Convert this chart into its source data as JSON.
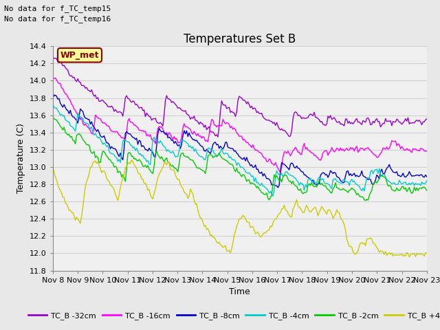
{
  "title": "Temperatures Set B",
  "xlabel": "Time",
  "ylabel": "Temperature (C)",
  "ylim": [
    11.8,
    14.4
  ],
  "xlim": [
    0,
    15
  ],
  "annotation_lines": [
    "No data for f_TC_temp15",
    "No data for f_TC_temp16"
  ],
  "wp_met_label": "WP_met",
  "x_tick_labels": [
    "Nov 8",
    "Nov 9",
    "Nov 10",
    "Nov 11",
    "Nov 12",
    "Nov 13",
    "Nov 14",
    "Nov 15",
    "Nov 16",
    "Nov 17",
    "Nov 18",
    "Nov 19",
    "Nov 20",
    "Nov 21",
    "Nov 22",
    "Nov 23"
  ],
  "y_ticks": [
    11.8,
    12.0,
    12.2,
    12.4,
    12.6,
    12.8,
    13.0,
    13.2,
    13.4,
    13.6,
    13.8,
    14.0,
    14.2,
    14.4
  ],
  "series": {
    "TC_B -32cm": {
      "color": "#9900cc",
      "pattern": [
        14.27,
        14.25,
        14.22,
        14.2,
        14.18,
        14.16,
        14.12,
        14.08,
        14.05,
        14.02,
        14.0,
        13.98,
        13.95,
        13.93,
        13.9,
        13.88,
        13.85,
        13.82,
        13.8,
        13.78,
        13.76,
        13.74,
        13.72,
        13.7,
        13.68,
        13.66,
        13.64,
        13.62,
        13.6,
        13.82,
        13.8,
        13.78,
        13.75,
        13.72,
        13.7,
        13.68,
        13.65,
        13.62,
        13.6,
        13.58,
        13.56,
        13.54,
        13.52,
        13.5,
        13.48,
        13.82,
        13.8,
        13.78,
        13.75,
        13.72,
        13.7,
        13.68,
        13.65,
        13.62,
        13.6,
        13.58,
        13.56,
        13.54,
        13.52,
        13.5,
        13.48,
        13.46,
        13.44,
        13.42,
        13.4,
        13.38,
        13.36,
        13.75,
        13.73,
        13.7,
        13.68,
        13.65,
        13.62,
        13.6,
        13.82,
        13.8,
        13.78,
        13.75,
        13.72,
        13.7,
        13.68,
        13.65,
        13.62,
        13.6,
        13.58,
        13.56,
        13.54,
        13.52,
        13.5,
        13.48,
        13.46,
        13.44,
        13.42,
        13.4,
        13.38,
        13.36,
        13.65,
        13.63,
        13.6,
        13.58,
        13.56,
        13.54,
        13.62,
        13.6,
        13.58,
        13.56,
        13.54,
        13.52,
        13.5,
        13.48,
        13.6,
        13.58,
        13.56,
        13.54,
        13.52,
        13.5,
        13.48,
        13.55,
        13.53,
        13.5,
        13.52,
        13.55,
        13.53,
        13.5,
        13.52,
        13.55,
        13.53,
        13.5,
        13.52,
        13.55,
        13.53,
        13.5,
        13.52,
        13.55,
        13.53,
        13.5,
        13.52,
        13.55,
        13.53,
        13.5,
        13.52,
        13.55,
        13.53,
        13.5,
        13.52,
        13.55,
        13.53,
        13.5,
        13.52,
        13.55
      ]
    },
    "TC_B -16cm": {
      "color": "#ff00ff",
      "pattern": [
        14.05,
        14.02,
        13.98,
        13.95,
        13.9,
        13.85,
        13.8,
        13.75,
        13.7,
        13.65,
        13.6,
        13.56,
        13.52,
        13.48,
        13.45,
        13.42,
        13.38,
        13.6,
        13.58,
        13.55,
        13.52,
        13.5,
        13.48,
        13.45,
        13.42,
        13.4,
        13.38,
        13.36,
        13.34,
        13.32,
        13.55,
        13.52,
        13.5,
        13.48,
        13.45,
        13.42,
        13.4,
        13.38,
        13.36,
        13.34,
        13.32,
        13.3,
        13.48,
        13.45,
        13.42,
        13.4,
        13.38,
        13.36,
        13.34,
        13.32,
        13.3,
        13.28,
        13.5,
        13.48,
        13.45,
        13.42,
        13.4,
        13.38,
        13.36,
        13.34,
        13.32,
        13.3,
        13.28,
        13.55,
        13.52,
        13.5,
        13.48,
        13.45,
        13.55,
        13.52,
        13.5,
        13.48,
        13.45,
        13.42,
        13.38,
        13.35,
        13.32,
        13.3,
        13.28,
        13.25,
        13.22,
        13.2,
        13.18,
        13.15,
        13.12,
        13.1,
        13.08,
        13.05,
        13.02,
        13.0,
        12.98,
        12.95,
        13.2,
        13.18,
        13.15,
        13.12,
        13.22,
        13.2,
        13.18,
        13.15,
        13.25,
        13.22,
        13.2,
        13.18,
        13.15,
        13.12,
        13.1,
        13.08,
        13.2,
        13.18,
        13.15,
        13.22,
        13.2,
        13.22,
        13.2,
        13.22,
        13.2,
        13.22,
        13.2,
        13.22,
        13.2,
        13.22,
        13.2,
        13.22,
        13.2,
        13.22,
        13.2,
        13.18,
        13.15,
        13.12,
        13.1,
        13.18,
        13.22,
        13.25,
        13.22,
        13.28,
        13.3,
        13.28,
        13.25,
        13.22,
        13.2,
        13.18,
        13.2,
        13.18,
        13.22,
        13.2,
        13.18,
        13.22,
        13.2,
        13.18
      ]
    },
    "TC_B -8cm": {
      "color": "#0000cc",
      "pattern": [
        13.85,
        13.82,
        13.78,
        13.75,
        13.72,
        13.68,
        13.65,
        13.62,
        13.58,
        13.55,
        13.52,
        13.65,
        13.62,
        13.58,
        13.55,
        13.52,
        13.48,
        13.45,
        13.42,
        13.38,
        13.35,
        13.32,
        13.28,
        13.25,
        13.22,
        13.18,
        13.15,
        13.12,
        13.08,
        13.42,
        13.4,
        13.38,
        13.35,
        13.32,
        13.3,
        13.28,
        13.25,
        13.22,
        13.2,
        13.18,
        13.15,
        13.12,
        13.45,
        13.42,
        13.4,
        13.38,
        13.35,
        13.32,
        13.3,
        13.28,
        13.25,
        13.22,
        13.42,
        13.4,
        13.38,
        13.35,
        13.32,
        13.3,
        13.28,
        13.25,
        13.22,
        13.2,
        13.18,
        13.15,
        13.3,
        13.28,
        13.25,
        13.22,
        13.2,
        13.28,
        13.25,
        13.22,
        13.2,
        13.18,
        13.15,
        13.12,
        13.1,
        13.08,
        13.05,
        13.02,
        13.0,
        12.98,
        12.95,
        12.92,
        12.9,
        12.88,
        12.85,
        12.82,
        12.8,
        12.78,
        12.75,
        13.05,
        13.02,
        13.0,
        12.98,
        13.05,
        13.02,
        13.0,
        12.98,
        12.95,
        12.92,
        12.9,
        12.88,
        12.85,
        12.82,
        12.8,
        12.78,
        12.95,
        12.92,
        12.9,
        12.88,
        12.95,
        12.92,
        12.9,
        12.88,
        12.85,
        12.82,
        12.95,
        12.92,
        12.9,
        12.92,
        12.9,
        12.88,
        12.92,
        12.9,
        12.88,
        12.85,
        12.82,
        12.8,
        12.9,
        12.88,
        12.95,
        12.92,
        12.98,
        13.0,
        12.98,
        12.95,
        12.92,
        12.9,
        12.88,
        12.9,
        12.88,
        12.92,
        12.9,
        12.88,
        12.9,
        12.88,
        12.9,
        12.88,
        12.9
      ]
    },
    "TC_B -4cm": {
      "color": "#00cccc",
      "pattern": [
        13.72,
        13.68,
        13.65,
        13.62,
        13.58,
        13.55,
        13.52,
        13.48,
        13.45,
        13.42,
        13.62,
        13.58,
        13.55,
        13.52,
        13.48,
        13.45,
        13.42,
        13.38,
        13.35,
        13.32,
        13.28,
        13.25,
        13.22,
        13.18,
        13.15,
        13.12,
        13.08,
        13.05,
        13.32,
        13.3,
        13.28,
        13.25,
        13.22,
        13.2,
        13.18,
        13.15,
        13.12,
        13.1,
        13.08,
        13.05,
        13.35,
        13.32,
        13.3,
        13.28,
        13.25,
        13.22,
        13.2,
        13.18,
        13.15,
        13.12,
        13.1,
        13.32,
        13.3,
        13.28,
        13.25,
        13.22,
        13.2,
        13.18,
        13.15,
        13.12,
        13.1,
        13.08,
        13.22,
        13.2,
        13.18,
        13.15,
        13.12,
        13.2,
        13.18,
        13.15,
        13.12,
        13.1,
        13.08,
        13.05,
        13.02,
        13.0,
        12.98,
        12.95,
        12.92,
        12.9,
        12.88,
        12.85,
        12.82,
        12.8,
        12.78,
        12.75,
        12.72,
        12.7,
        12.68,
        12.95,
        12.92,
        12.9,
        12.88,
        12.95,
        12.92,
        12.9,
        12.88,
        12.85,
        12.82,
        12.8,
        12.78,
        12.75,
        12.88,
        12.85,
        12.82,
        12.8,
        12.88,
        12.85,
        12.82,
        12.8,
        12.78,
        12.75,
        12.88,
        12.85,
        12.82,
        12.8,
        12.85,
        12.82,
        12.8,
        12.85,
        12.82,
        12.8,
        12.78,
        12.75,
        12.72,
        12.9,
        12.88,
        12.95,
        12.92,
        12.98,
        12.95,
        12.92,
        12.88,
        12.85,
        12.82,
        12.8,
        12.82,
        12.8,
        12.85,
        12.82,
        12.8,
        12.82,
        12.8,
        12.82,
        12.8,
        12.82,
        12.8,
        12.82,
        12.8,
        12.82
      ]
    },
    "TC_B -2cm": {
      "color": "#00cc00",
      "pattern": [
        13.58,
        13.55,
        13.52,
        13.48,
        13.45,
        13.42,
        13.38,
        13.35,
        13.32,
        13.28,
        13.4,
        13.36,
        13.32,
        13.28,
        13.24,
        13.2,
        13.16,
        13.12,
        13.08,
        13.04,
        13.2,
        13.16,
        13.12,
        13.08,
        13.04,
        13.0,
        12.96,
        12.92,
        12.88,
        12.84,
        13.18,
        13.15,
        13.12,
        13.1,
        13.08,
        13.05,
        13.02,
        13.0,
        12.98,
        12.95,
        12.92,
        13.18,
        13.15,
        13.12,
        13.1,
        13.08,
        13.05,
        13.02,
        13.0,
        12.98,
        12.95,
        13.18,
        13.15,
        13.12,
        13.1,
        13.08,
        13.05,
        13.02,
        13.0,
        12.98,
        12.95,
        12.92,
        13.18,
        13.15,
        13.12,
        13.1,
        13.15,
        13.12,
        13.1,
        13.08,
        13.05,
        13.02,
        13.0,
        12.98,
        12.95,
        12.92,
        12.9,
        12.88,
        12.85,
        12.82,
        12.8,
        12.78,
        12.75,
        12.72,
        12.7,
        12.68,
        12.65,
        12.62,
        12.9,
        12.88,
        12.85,
        12.82,
        12.9,
        12.88,
        12.85,
        12.82,
        12.8,
        12.78,
        12.75,
        12.72,
        12.7,
        12.68,
        12.82,
        12.8,
        12.78,
        12.75,
        12.82,
        12.8,
        12.78,
        12.75,
        12.72,
        12.7,
        12.8,
        12.78,
        12.75,
        12.72,
        12.75,
        12.72,
        12.7,
        12.75,
        12.72,
        12.7,
        12.68,
        12.65,
        12.62,
        12.6,
        12.62,
        12.75,
        12.82,
        12.8,
        12.88,
        12.92,
        12.88,
        12.82,
        12.78,
        12.75,
        12.72,
        12.75,
        12.72,
        12.78,
        12.75,
        12.72,
        12.75,
        12.72,
        12.75,
        12.72,
        12.75,
        12.72,
        12.75,
        12.72
      ]
    },
    "TC_B +4cm": {
      "color": "#cccc00",
      "pattern": [
        13.0,
        12.9,
        12.8,
        12.72,
        12.65,
        12.6,
        12.55,
        12.5,
        12.45,
        12.4,
        12.38,
        12.35,
        12.55,
        12.75,
        12.88,
        13.0,
        13.05,
        13.08,
        13.05,
        13.0,
        12.95,
        12.9,
        12.85,
        12.8,
        12.75,
        12.68,
        12.62,
        12.78,
        12.88,
        12.98,
        13.05,
        13.08,
        13.05,
        13.0,
        12.95,
        12.9,
        12.85,
        12.8,
        12.75,
        12.68,
        12.62,
        12.78,
        12.88,
        12.95,
        13.02,
        13.08,
        13.05,
        13.0,
        12.95,
        12.9,
        12.85,
        12.8,
        12.75,
        12.68,
        12.62,
        12.78,
        12.65,
        12.55,
        12.48,
        12.4,
        12.35,
        12.3,
        12.25,
        12.2,
        12.18,
        12.15,
        12.12,
        12.1,
        12.08,
        12.05,
        12.02,
        12.0,
        12.18,
        12.28,
        12.35,
        12.4,
        12.45,
        12.38,
        12.35,
        12.3,
        12.28,
        12.25,
        12.22,
        12.2,
        12.22,
        12.25,
        12.28,
        12.3,
        12.35,
        12.4,
        12.45,
        12.5,
        12.55,
        12.5,
        12.45,
        12.4,
        12.55,
        12.6,
        12.55,
        12.5,
        12.45,
        12.55,
        12.5,
        12.45,
        12.55,
        12.5,
        12.45,
        12.55,
        12.5,
        12.45,
        12.52,
        12.45,
        12.4,
        12.5,
        12.45,
        12.4,
        12.35,
        12.2,
        12.1,
        12.05,
        12.0,
        11.98,
        12.08,
        12.12,
        12.1,
        12.15,
        12.2,
        12.15,
        12.1,
        12.05,
        12.0,
        12.05,
        12.0,
        11.98,
        12.0,
        11.98,
        11.98,
        12.0,
        11.98,
        12.0,
        11.98,
        12.0,
        11.98,
        12.0,
        11.98,
        12.0,
        11.98,
        12.0,
        11.98,
        12.0
      ]
    }
  },
  "background_color": "#e8e8e8",
  "plot_bg_color": "#f0f0f0",
  "grid_color": "#d0d0d0",
  "title_fontsize": 12,
  "axis_fontsize": 9,
  "tick_fontsize": 8
}
